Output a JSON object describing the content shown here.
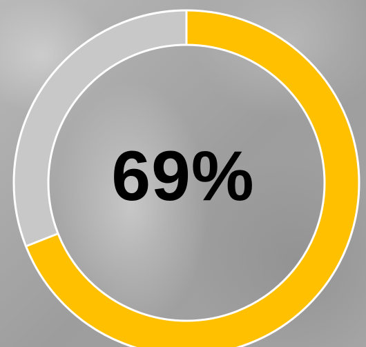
{
  "chart_data": {
    "type": "pie",
    "value_percent": 69,
    "value_label": "69%",
    "segments": [
      {
        "value": 69,
        "color": "#FFC000"
      },
      {
        "value": 31,
        "color": "#C8C8C8"
      }
    ],
    "separator_color": "#FFFFFF"
  }
}
